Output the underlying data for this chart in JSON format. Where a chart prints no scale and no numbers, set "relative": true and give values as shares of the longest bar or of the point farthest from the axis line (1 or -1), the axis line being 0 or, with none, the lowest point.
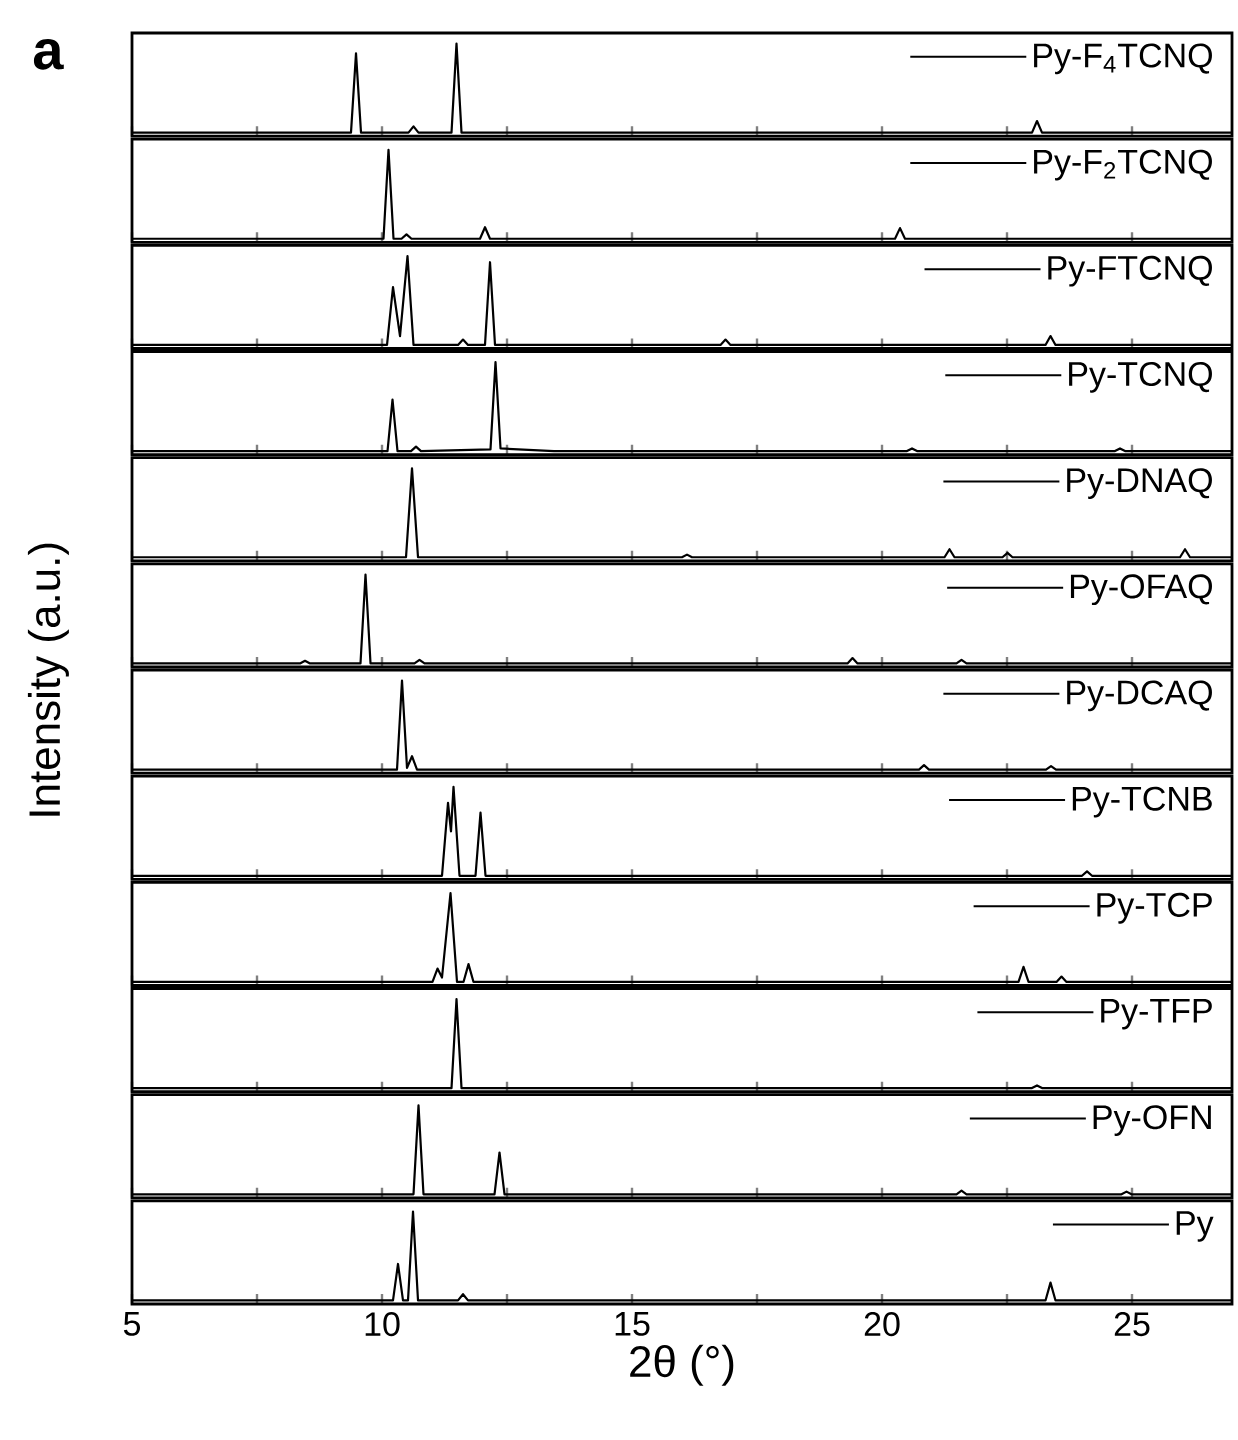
{
  "chart_data": [
    {
      "type": "line",
      "relative": true,
      "xlim": [
        5,
        27
      ],
      "tick_labels": false,
      "legend": "top right",
      "annotations": [
        "a"
      ],
      "xticks": [
        5,
        {
          "value": 7.5,
          "label": null
        },
        10,
        {
          "value": 12.5,
          "label": null
        },
        15,
        {
          "value": 17.5,
          "label": null
        },
        20,
        {
          "value": 22.5,
          "label": null
        },
        25
      ],
      "series": [
        {
          "name": "Py-F$_{4}$TCNQ",
          "color": "#000000",
          "x": [
            5,
            9.38,
            9.48,
            9.58,
            10.53,
            10.63,
            10.73,
            11.39,
            11.49,
            11.59,
            23.0,
            23.1,
            23.2,
            27
          ],
          "values": [
            0,
            0,
            0.89,
            0,
            0,
            0.07,
            0,
            0,
            1,
            0,
            0,
            0.13,
            0,
            0
          ]
        }
      ]
    },
    {
      "type": "line",
      "relative": true,
      "xlim": [
        5,
        27
      ],
      "tick_labels": false,
      "legend": "top right",
      "xticks": [
        5,
        {
          "value": 7.5,
          "label": null
        },
        10,
        {
          "value": 12.5,
          "label": null
        },
        15,
        {
          "value": 17.5,
          "label": null
        },
        20,
        {
          "value": 22.5,
          "label": null
        },
        25
      ],
      "series": [
        {
          "name": "Py-F$_{2}$TCNQ",
          "color": "#000000",
          "x": [
            5,
            10.03,
            10.13,
            10.23,
            10.39,
            10.49,
            10.59,
            11.96,
            12.06,
            12.16,
            20.26,
            20.36,
            20.46,
            27
          ],
          "values": [
            0,
            0,
            1,
            0,
            0,
            0.05,
            0,
            0,
            0.13,
            0,
            0,
            0.12,
            0,
            0
          ]
        }
      ]
    },
    {
      "type": "line",
      "relative": true,
      "xlim": [
        5,
        27
      ],
      "tick_labels": false,
      "legend": "top right",
      "xticks": [
        5,
        {
          "value": 7.5,
          "label": null
        },
        10,
        {
          "value": 12.5,
          "label": null
        },
        15,
        {
          "value": 17.5,
          "label": null
        },
        20,
        {
          "value": 22.5,
          "label": null
        },
        25
      ],
      "series": [
        {
          "name": "Py-FTCNQ",
          "color": "#000000",
          "x": [
            5,
            10.1,
            10.22,
            10.36,
            10.51,
            10.63,
            11.52,
            11.62,
            11.72,
            12.06,
            12.16,
            12.26,
            16.77,
            16.87,
            16.97,
            23.27,
            23.37,
            23.47,
            27
          ],
          "values": [
            0,
            0,
            0.65,
            0.1,
            1,
            0,
            0,
            0.06,
            0,
            0,
            0.93,
            0,
            0,
            0.06,
            0,
            0,
            0.1,
            0,
            0
          ]
        }
      ]
    },
    {
      "type": "line",
      "relative": true,
      "xlim": [
        5,
        27
      ],
      "tick_labels": false,
      "legend": "top right",
      "xticks": [
        5,
        {
          "value": 7.5,
          "label": null
        },
        10,
        {
          "value": 12.5,
          "label": null
        },
        15,
        {
          "value": 17.5,
          "label": null
        },
        20,
        {
          "value": 22.5,
          "label": null
        },
        25
      ],
      "series": [
        {
          "name": "Py-TCNQ",
          "color": "#000000",
          "x": [
            5,
            10.11,
            10.21,
            10.31,
            10.58,
            10.68,
            10.78,
            12.17,
            12.27,
            12.37,
            13.44,
            20.5,
            20.6,
            20.7,
            24.66,
            24.76,
            24.86,
            27
          ],
          "values": [
            0,
            0,
            0.58,
            0,
            0,
            0.05,
            0,
            0.02,
            1,
            0.03,
            0,
            0,
            0.03,
            0,
            0,
            0.03,
            0,
            0
          ]
        }
      ]
    },
    {
      "type": "line",
      "relative": true,
      "xlim": [
        5,
        27
      ],
      "tick_labels": false,
      "legend": "top right",
      "xticks": [
        5,
        {
          "value": 7.5,
          "label": null
        },
        10,
        {
          "value": 12.5,
          "label": null
        },
        15,
        {
          "value": 17.5,
          "label": null
        },
        20,
        {
          "value": 22.5,
          "label": null
        },
        25
      ],
      "series": [
        {
          "name": "Py-DNAQ",
          "color": "#000000",
          "x": [
            5,
            10.48,
            10.6,
            10.72,
            16.0,
            16.1,
            16.2,
            21.25,
            21.35,
            21.45,
            22.41,
            22.51,
            22.61,
            25.96,
            26.06,
            26.16,
            27
          ],
          "values": [
            0,
            0,
            1,
            0,
            0,
            0.03,
            0,
            0,
            0.09,
            0,
            0,
            0.05,
            0,
            0,
            0.09,
            0,
            0
          ]
        }
      ]
    },
    {
      "type": "line",
      "relative": true,
      "xlim": [
        5,
        27
      ],
      "tick_labels": false,
      "legend": "top right",
      "xticks": [
        5,
        {
          "value": 7.5,
          "label": null
        },
        10,
        {
          "value": 12.5,
          "label": null
        },
        15,
        {
          "value": 17.5,
          "label": null
        },
        20,
        {
          "value": 22.5,
          "label": null
        },
        25
      ],
      "series": [
        {
          "name": "Py-OFAQ",
          "color": "#000000",
          "x": [
            5,
            8.36,
            8.46,
            8.56,
            9.57,
            9.67,
            9.77,
            10.65,
            10.75,
            10.85,
            19.31,
            19.41,
            19.51,
            21.49,
            21.59,
            21.69,
            27
          ],
          "values": [
            0,
            0,
            0.03,
            0,
            0,
            1,
            0,
            0,
            0.04,
            0,
            0,
            0.06,
            0,
            0,
            0.04,
            0,
            0
          ]
        }
      ]
    },
    {
      "type": "line",
      "relative": true,
      "xlim": [
        5,
        27
      ],
      "tick_labels": false,
      "legend": "top right",
      "ylabel": "Intensity (a.u.)",
      "xticks": [
        5,
        {
          "value": 7.5,
          "label": null
        },
        10,
        {
          "value": 12.5,
          "label": null
        },
        15,
        {
          "value": 17.5,
          "label": null
        },
        20,
        {
          "value": 22.5,
          "label": null
        },
        25
      ],
      "series": [
        {
          "name": "Py-DCAQ",
          "color": "#000000",
          "x": [
            5,
            10.3,
            10.4,
            10.5,
            10.6,
            10.7,
            20.74,
            20.84,
            20.94,
            23.28,
            23.38,
            23.48,
            27
          ],
          "values": [
            0,
            0,
            1,
            0.02,
            0.15,
            0,
            0,
            0.05,
            0,
            0,
            0.04,
            0,
            0
          ]
        }
      ]
    },
    {
      "type": "line",
      "relative": true,
      "xlim": [
        5,
        27
      ],
      "tick_labels": false,
      "legend": "top right",
      "xticks": [
        5,
        {
          "value": 7.5,
          "label": null
        },
        10,
        {
          "value": 12.5,
          "label": null
        },
        15,
        {
          "value": 17.5,
          "label": null
        },
        20,
        {
          "value": 22.5,
          "label": null
        },
        25
      ],
      "series": [
        {
          "name": "Py-TCNB",
          "color": "#000000",
          "x": [
            5,
            11.2,
            11.32,
            11.38,
            11.43,
            11.55,
            11.87,
            11.97,
            12.07,
            24.0,
            24.1,
            24.2,
            27
          ],
          "values": [
            0,
            0,
            0.82,
            0.5,
            1,
            0,
            0,
            0.71,
            0,
            0,
            0.05,
            0,
            0
          ]
        }
      ]
    },
    {
      "type": "line",
      "relative": true,
      "xlim": [
        5,
        27
      ],
      "tick_labels": false,
      "legend": "top right",
      "xticks": [
        5,
        {
          "value": 7.5,
          "label": null
        },
        10,
        {
          "value": 12.5,
          "label": null
        },
        15,
        {
          "value": 17.5,
          "label": null
        },
        20,
        {
          "value": 22.5,
          "label": null
        },
        25
      ],
      "series": [
        {
          "name": "Py-TCP",
          "color": "#000000",
          "x": [
            5,
            11.01,
            11.11,
            11.2,
            11.37,
            11.5,
            11.63,
            11.73,
            11.83,
            22.73,
            22.83,
            22.93,
            23.49,
            23.59,
            23.69,
            27
          ],
          "values": [
            0,
            0,
            0.15,
            0.05,
            1,
            0,
            0,
            0.2,
            0,
            0,
            0.17,
            0,
            0,
            0.06,
            0,
            0
          ]
        }
      ]
    },
    {
      "type": "line",
      "relative": true,
      "xlim": [
        5,
        27
      ],
      "tick_labels": false,
      "legend": "top right",
      "xticks": [
        5,
        {
          "value": 7.5,
          "label": null
        },
        10,
        {
          "value": 12.5,
          "label": null
        },
        15,
        {
          "value": 17.5,
          "label": null
        },
        20,
        {
          "value": 22.5,
          "label": null
        },
        25
      ],
      "series": [
        {
          "name": "Py-TFP",
          "color": "#000000",
          "x": [
            5,
            11.39,
            11.49,
            11.59,
            23.0,
            23.1,
            23.2,
            27
          ],
          "values": [
            0,
            0,
            1,
            0,
            0,
            0.03,
            0,
            0
          ]
        }
      ]
    },
    {
      "type": "line",
      "relative": true,
      "xlim": [
        5,
        27
      ],
      "tick_labels": false,
      "legend": "top right",
      "xticks": [
        5,
        {
          "value": 7.5,
          "label": null
        },
        10,
        {
          "value": 12.5,
          "label": null
        },
        15,
        {
          "value": 17.5,
          "label": null
        },
        20,
        {
          "value": 22.5,
          "label": null
        },
        25
      ],
      "series": [
        {
          "name": "Py-OFN",
          "color": "#000000",
          "x": [
            5,
            10.63,
            10.73,
            10.83,
            12.25,
            12.35,
            12.45,
            21.49,
            21.59,
            21.69,
            24.79,
            24.89,
            24.99,
            27
          ],
          "values": [
            0,
            0,
            1,
            0,
            0,
            0.47,
            0,
            0,
            0.04,
            0,
            0,
            0.03,
            0,
            0
          ]
        }
      ]
    },
    {
      "type": "line",
      "relative": true,
      "xlim": [
        5,
        27
      ],
      "xlabel": "2θ (°)",
      "legend": "top right",
      "xticks": [
        5,
        {
          "value": 7.5,
          "label": null
        },
        10,
        {
          "value": 12.5,
          "label": null
        },
        15,
        {
          "value": 17.5,
          "label": null
        },
        20,
        {
          "value": 22.5,
          "label": null
        },
        25
      ],
      "series": [
        {
          "name": "Py",
          "color": "#000000",
          "x": [
            5,
            10.22,
            10.32,
            10.42,
            10.52,
            10.62,
            10.72,
            11.52,
            11.62,
            11.72,
            23.27,
            23.37,
            23.47,
            27
          ],
          "values": [
            0,
            0,
            0.41,
            0,
            0,
            1,
            0,
            0,
            0.07,
            0,
            0,
            0.2,
            0,
            0
          ]
        }
      ]
    }
  ]
}
